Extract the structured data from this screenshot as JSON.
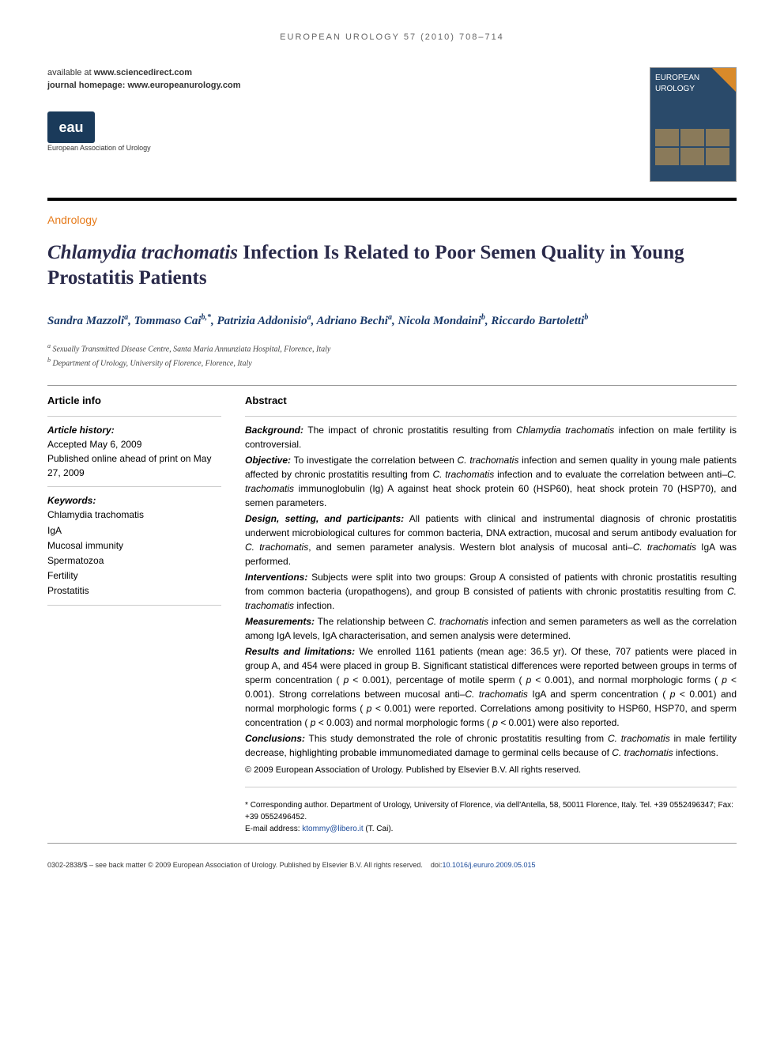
{
  "header": {
    "citation": "EUROPEAN UROLOGY 57 (2010) 708–714",
    "available_label": "available at",
    "available_url": "www.sciencedirect.com",
    "homepage_label": "journal homepage:",
    "homepage_url": "www.europeanurology.com",
    "logo_text": "eau",
    "logo_caption": "European Association of Urology",
    "cover_title": "EUROPEAN UROLOGY"
  },
  "article": {
    "category": "Andrology",
    "title_prefix_italic": "Chlamydia trachomatis",
    "title_rest": " Infection Is Related to Poor Semen Quality in Young Prostatitis Patients",
    "authors_html": "Sandra Mazzoli<sup>a</sup>, Tommaso Cai<sup>b,*</sup>, Patrizia Addonisio<sup>a</sup>, Adriano Bechi<sup>a</sup>, Nicola Mondaini<sup>b</sup>, Riccardo Bartoletti<sup>b</sup>",
    "affiliations": [
      {
        "sup": "a",
        "text": "Sexually Transmitted Disease Centre, Santa Maria Annunziata Hospital, Florence, Italy"
      },
      {
        "sup": "b",
        "text": "Department of Urology, University of Florence, Florence, Italy"
      }
    ]
  },
  "info": {
    "heading": "Article info",
    "history_label": "Article history:",
    "accepted": "Accepted May 6, 2009",
    "published": "Published online ahead of print on May 27, 2009",
    "keywords_label": "Keywords:",
    "keywords": [
      "Chlamydia trachomatis",
      "IgA",
      "Mucosal immunity",
      "Spermatozoa",
      "Fertility",
      "Prostatitis"
    ]
  },
  "abstract": {
    "heading": "Abstract",
    "sections": [
      {
        "label": "Background:",
        "text": "The impact of chronic prostatitis resulting from <em>Chlamydia trachomatis</em> infection on male fertility is controversial."
      },
      {
        "label": "Objective:",
        "text": "To investigate the correlation between <em>C. trachomatis</em> infection and semen quality in young male patients affected by chronic prostatitis resulting from <em>C. trachomatis</em> infection and to evaluate the correlation between anti–<em>C. trachomatis</em> immunoglobulin (Ig) A against heat shock protein 60 (HSP60), heat shock protein 70 (HSP70), and semen parameters."
      },
      {
        "label": "Design, setting, and participants:",
        "text": "All patients with clinical and instrumental diagnosis of chronic prostatitis underwent microbiological cultures for common bacteria, DNA extraction, mucosal and serum antibody evaluation for <em>C. trachomatis</em>, and semen parameter analysis. Western blot analysis of mucosal anti–<em>C. trachomatis</em> IgA was performed."
      },
      {
        "label": "Interventions:",
        "text": "Subjects were split into two groups: Group A consisted of patients with chronic prostatitis resulting from common bacteria (uropathogens), and group B consisted of patients with chronic prostatitis resulting from <em>C. trachomatis</em> infection."
      },
      {
        "label": "Measurements:",
        "text": "The relationship between <em>C. trachomatis</em> infection and semen parameters as well as the correlation among IgA levels, IgA characterisation, and semen analysis were determined."
      },
      {
        "label": "Results and limitations:",
        "text": "We enrolled 1161 patients (mean age: 36.5 yr). Of these, 707 patients were placed in group A, and 454 were placed in group B. Significant statistical differences were reported between groups in terms of sperm concentration ( <em>p</em> < 0.001), percentage of motile sperm ( <em>p</em> < 0.001), and normal morphologic forms ( <em>p</em> < 0.001). Strong correlations between mucosal anti–<em>C. trachomatis</em> IgA and sperm concentration ( <em>p</em> < 0.001) and normal morphologic forms ( <em>p</em> < 0.001) were reported. Correlations among positivity to HSP60, HSP70, and sperm concentration ( <em>p</em> < 0.003) and normal morphologic forms ( <em>p</em> < 0.001) were also reported."
      },
      {
        "label": "Conclusions:",
        "text": "This study demonstrated the role of chronic prostatitis resulting from <em>C. trachomatis</em> in male fertility decrease, highlighting probable immunomediated damage to germinal cells because of <em>C. trachomatis</em> infections."
      }
    ],
    "copyright": "© 2009 European Association of Urology. Published by Elsevier B.V. All rights reserved."
  },
  "corresponding": {
    "marker": "*",
    "text": "Corresponding author. Department of Urology, University of Florence, via dell'Antella, 58, 50011 Florence, Italy. Tel. +39 0552496347; Fax: +39 0552496452.",
    "email_label": "E-mail address:",
    "email": "ktommy@libero.it",
    "email_name": "(T. Cai)."
  },
  "footer": {
    "text": "0302-2838/$ – see back matter © 2009 European Association of Urology. Published by Elsevier B.V. All rights reserved.",
    "doi_label": "doi:",
    "doi": "10.1016/j.eururo.2009.05.015"
  },
  "colors": {
    "category": "#e67a1a",
    "title": "#2a2a4a",
    "authors": "#1a3a6a",
    "link": "#1a4a9a",
    "logo_bg": "#1a3a5a"
  }
}
